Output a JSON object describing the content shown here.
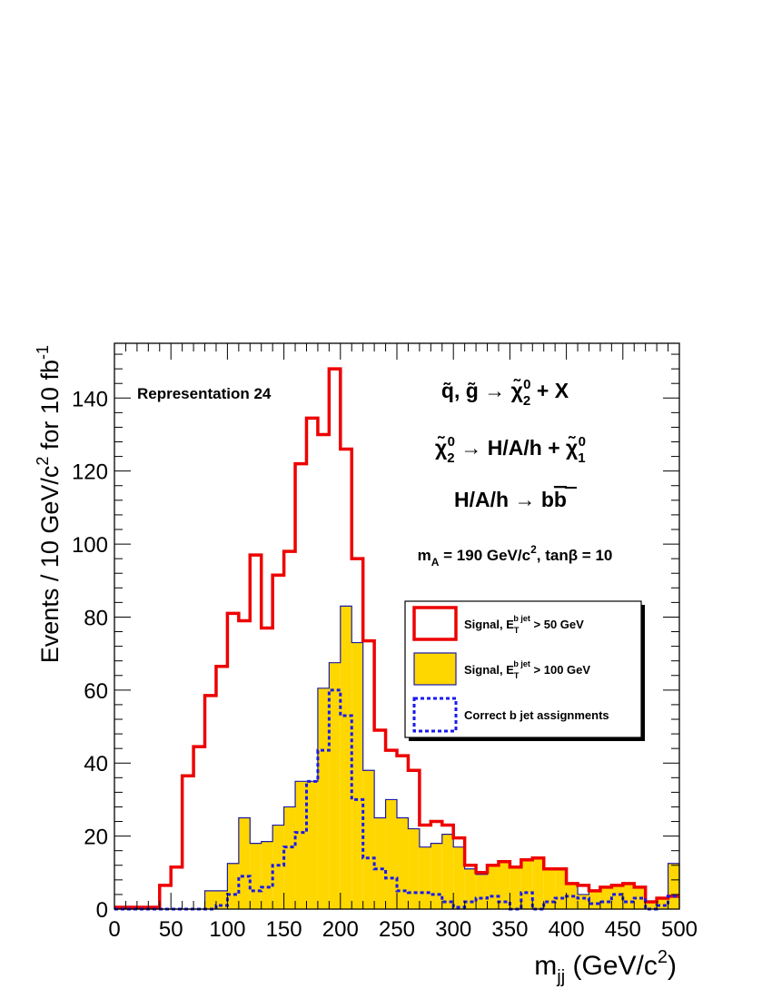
{
  "chart_data": {
    "type": "histogram",
    "bin_width": 10,
    "xlim": [
      0,
      500
    ],
    "ylim": [
      0,
      155
    ],
    "xticks": [
      0,
      50,
      100,
      150,
      200,
      250,
      300,
      350,
      400,
      450,
      500
    ],
    "yticks": [
      0,
      20,
      40,
      60,
      80,
      100,
      120,
      140
    ],
    "xlabel": {
      "main": "m",
      "sub": "jj",
      "unit_pre": " (GeV/c",
      "sup": "2",
      "unit_post": ")"
    },
    "ylabel": {
      "pre": "Events / 10 GeV/c",
      "sup1": "2",
      "mid": " for 10 fb",
      "sup2": "-1"
    },
    "annotation": "Representation 24",
    "process_lines": [
      {
        "p1": "q̃, g̃ → χ̃",
        "sub": "2",
        "sup": "0",
        "p2": " + X"
      },
      {
        "p0": "χ̃",
        "sub0": "2",
        "sup0": "0",
        "p1": " → H/A/h + χ̃",
        "sub1": "1",
        "sup1": "0"
      },
      {
        "text": "H/A/h → b",
        "bbar": "b"
      }
    ],
    "params": {
      "m": "m",
      "msub": "A",
      "mval": " = 190 GeV/c",
      "msup": "2",
      "tail": ", tanβ = 10"
    },
    "legend_position": "right-middle",
    "series": [
      {
        "name": "Signal, E_T^{b jet} > 50 GeV",
        "label_main": "Signal, E",
        "label_sub": "T",
        "label_sup": "b jet",
        "label_tail": " > 50 GeV",
        "style": "line",
        "color": "#ee0000",
        "values": [
          0.5,
          0.5,
          0.5,
          0.5,
          6.5,
          11.5,
          36.5,
          44.5,
          58.5,
          66.5,
          81,
          79,
          97,
          77,
          91.5,
          98,
          122,
          134.5,
          130,
          148,
          126,
          96,
          73.5,
          49,
          43.5,
          42,
          38,
          23,
          24,
          23,
          19.5,
          12,
          10,
          12,
          13,
          11.5,
          13.5,
          14,
          11,
          11,
          7,
          6.5,
          5,
          6,
          6.5,
          7,
          6,
          2,
          3,
          3.5
        ]
      },
      {
        "name": "Signal, E_T^{b jet} > 100 GeV",
        "label_main": "Signal, E",
        "label_sub": "T",
        "label_sup": "b jet",
        "label_tail": " > 100 GeV",
        "style": "fill",
        "color": "#ffd700",
        "edge": "#1a1aa8",
        "values": [
          0,
          0,
          0,
          0,
          0,
          0,
          0,
          0,
          5,
          5,
          12.5,
          25,
          18,
          18.5,
          23,
          28,
          35,
          35,
          60.5,
          67.5,
          83,
          73,
          38,
          25,
          30,
          25,
          22,
          17,
          18,
          20.5,
          17,
          11,
          9.5,
          12,
          13,
          11.5,
          13.5,
          14,
          11,
          11,
          7,
          4,
          5,
          6,
          6.5,
          7,
          6,
          2,
          3,
          12.5
        ]
      },
      {
        "name": "Correct b jet assignments",
        "label_text": "Correct b jet assignments",
        "style": "dashed",
        "color": "#1a1aee",
        "values": [
          0,
          0,
          0,
          0,
          0,
          0,
          0,
          0,
          0,
          1,
          4,
          9,
          5,
          6,
          12,
          17,
          21,
          35,
          43.5,
          60,
          53,
          30,
          14,
          11,
          8.5,
          5,
          4.5,
          4.5,
          4,
          2,
          0.5,
          2,
          3,
          3.5,
          2,
          0,
          4.5,
          0,
          2,
          3,
          3.5,
          3,
          1.5,
          2,
          4,
          2,
          3,
          0,
          1,
          3.5
        ]
      }
    ]
  }
}
